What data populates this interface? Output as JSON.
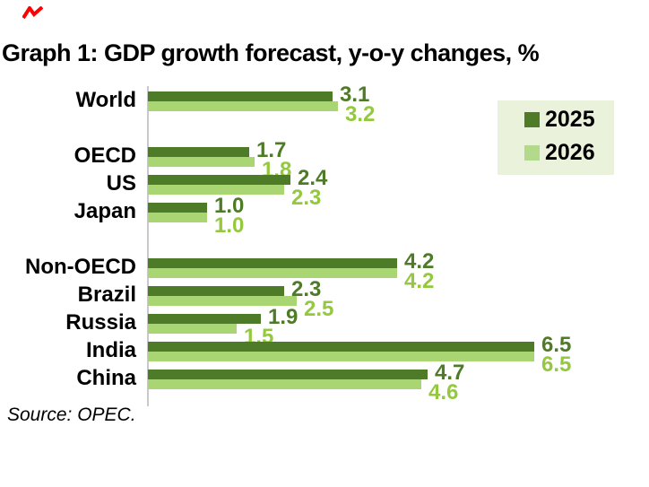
{
  "page": {
    "title": "Graph 1: GDP growth forecast, y-o-y changes, %",
    "source": "Source: OPEC.",
    "corner_mark_color": "#ff0000"
  },
  "legend": {
    "background": "#eaf2dc",
    "items": [
      {
        "label": "2025",
        "color": "#4e7b27"
      },
      {
        "label": "2026",
        "color": "#b3d98a"
      }
    ]
  },
  "colors": {
    "series2025_bar": "#4e7b27",
    "series2025_label": "#4e7b27",
    "series2026_bar": "#a9d572",
    "series2026_label": "#94c83f",
    "axis_line": "#c9c9c9",
    "title_text": "#000000"
  },
  "chart_data": {
    "type": "bar",
    "orientation": "horizontal",
    "title": "Graph 1: GDP growth forecast, y-o-y changes, %",
    "categories": [
      "World",
      "OECD",
      "US",
      "Japan",
      "Non-OECD",
      "Brazil",
      "Russia",
      "India",
      "China"
    ],
    "series": [
      {
        "name": "2025",
        "values": [
          3.1,
          1.7,
          2.4,
          1.0,
          4.2,
          2.3,
          1.9,
          6.5,
          4.7
        ]
      },
      {
        "name": "2026",
        "values": [
          3.2,
          1.8,
          2.3,
          1.0,
          4.2,
          2.5,
          1.5,
          6.5,
          4.6
        ]
      }
    ],
    "value_labels": true,
    "value_label_decimals": 1,
    "xlim": [
      0,
      6.8
    ],
    "grid": false,
    "legend_position": "right",
    "group_breaks_after": [
      "World",
      "Japan"
    ],
    "source": "Source: OPEC."
  }
}
